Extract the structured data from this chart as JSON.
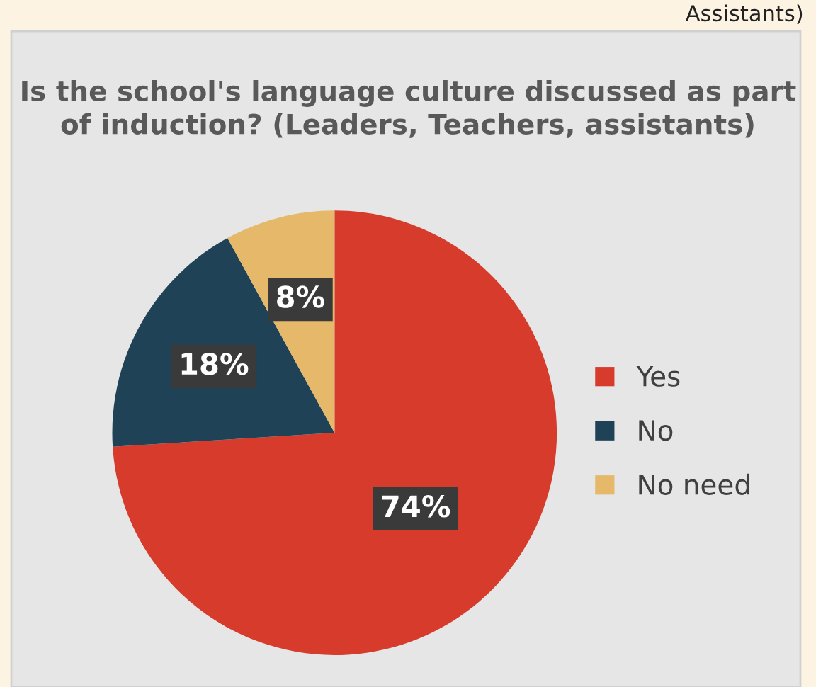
{
  "chart_data": {
    "type": "pie",
    "title": "Is the school's language culture discussed as part of induction? (Leaders, Teachers, assistants)",
    "categories": [
      "Yes",
      "No",
      "No need"
    ],
    "values": [
      74,
      18,
      8
    ],
    "colors": [
      "#d63b2b",
      "#1f4257",
      "#e5b86a"
    ],
    "value_labels": [
      "74%",
      "18%",
      "8%"
    ],
    "legend": "right",
    "annotations": [
      "Assistants)"
    ]
  }
}
